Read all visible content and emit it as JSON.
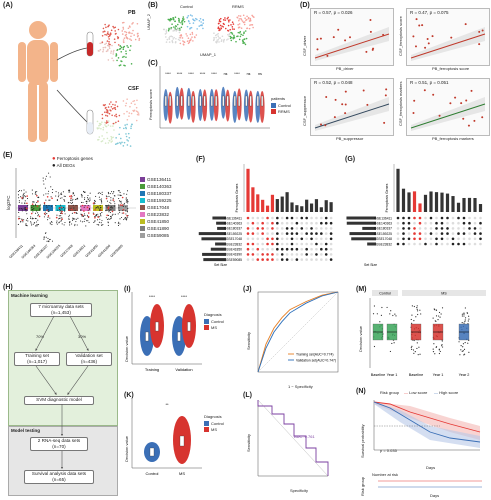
{
  "panels": {
    "A": {
      "letter": "(A)",
      "tube_labels": [
        "PB",
        "CSF"
      ]
    },
    "B": {
      "letter": "(B)",
      "titles": [
        "Control",
        "RRMS"
      ],
      "xlabel": "UMAP_1",
      "ylabel": "UMAP_2"
    },
    "C": {
      "letter": "(C)",
      "ylabel": "Ferroptosis score",
      "legend_title": "patients",
      "legend_items": [
        "Control",
        "RRMS"
      ],
      "sig": [
        "****",
        "****",
        "****",
        "****",
        "****",
        "ns",
        "****",
        "ns",
        "ns"
      ]
    },
    "D": {
      "letter": "(D)",
      "plots": [
        {
          "stat": "R = 0.57, p = 0.026",
          "xlabel": "PB_driver",
          "ylabel": "CSF_driver",
          "line": "#c0392b"
        },
        {
          "stat": "R = 0.47, p = 0.075",
          "xlabel": "PB_ferroptosis score",
          "ylabel": "CSF_ferroptosis score",
          "line": "#c0392b"
        },
        {
          "stat": "R = 0.52, p = 0.048",
          "xlabel": "PB_suppressor",
          "ylabel": "CSF_suppressor",
          "line": "#34495e"
        },
        {
          "stat": "R = 0.51, p = 0.051",
          "xlabel": "PB_ferroptosis markers",
          "ylabel": "CSF_ferroptosis markers",
          "line": "#2e7d32"
        }
      ]
    },
    "E": {
      "letter": "(E)",
      "ylabel": "log2FC",
      "legend": [
        "Ferroptosis genes",
        "All DEGs"
      ],
      "datasets": [
        "GSE136411",
        "GSE140363",
        "GSE180337",
        "GSE159225",
        "GSE17048",
        "GSE23832",
        "GSE41850",
        "GSE41890",
        "GSE59085"
      ],
      "colors": [
        "#7b3f98",
        "#4a9a3a",
        "#1f77b4",
        "#17becf",
        "#8c564b",
        "#e377c2",
        "#bcbd22",
        "#7f7f7f",
        "#9e9e9e"
      ]
    },
    "F": {
      "letter": "(F)",
      "ylabel": "Ferroptosis Genes",
      "setsize": "Set Size",
      "sets": [
        "GSE136411",
        "GSE140363",
        "GSE180337",
        "GSE159225",
        "GSE17048",
        "GSE23832",
        "GSE41850",
        "GSE41890",
        "GSE59085"
      ]
    },
    "G": {
      "letter": "(G)",
      "ylabel": "Ferroptosis Genes",
      "setsize": "Set Size",
      "sets": [
        "GSE136411",
        "GSE140363",
        "GSE180337",
        "GSE159225",
        "GSE17048",
        "GSE23832"
      ]
    },
    "H": {
      "letter": "(H)",
      "ml_title": "Machine learning",
      "mt_title": "Model testing",
      "box1": "7 microarray data sets\n(n=1,453)",
      "pct_left": "70%",
      "pct_right": "30%",
      "train": "Training set\n(n=1,017)",
      "valid": "Validation set\n(n=436)",
      "svm": "SVM diagnostic model",
      "rna": "2 RNA-seq data sets\n(n=70)",
      "surv": "Survival analysis data sets\n(n=65)"
    },
    "I": {
      "letter": "(I)",
      "ylabel": "Decision value",
      "xcats": [
        "Training",
        "Validation"
      ],
      "legend_title": "Diagnosis",
      "legend_items": [
        "Control",
        "MS"
      ],
      "sig": [
        "****",
        "****"
      ]
    },
    "J": {
      "letter": "(J)",
      "xlabel": "1 − Specificity",
      "ylabel": "Sensitivity",
      "legend": [
        "Training set(AUC=0.774)",
        "Validation set(AUC=0.747)"
      ]
    },
    "K": {
      "letter": "(K)",
      "ylabel": "Decision value",
      "xcats": [
        "Control",
        "MS"
      ],
      "legend_title": "Diagnosis",
      "legend_items": [
        "Control",
        "MS"
      ],
      "sig": "**"
    },
    "L": {
      "letter": "(L)",
      "xlabel": "Specificity",
      "ylabel": "Sensitivity",
      "auc": "AUC: 0.761"
    },
    "M": {
      "letter": "(M)",
      "ylabel": "Decision value",
      "xcats": [
        "Baseline",
        "Year 1",
        "Baseline",
        "Year 1",
        "Year 2"
      ],
      "groups": [
        "Control",
        "MS"
      ]
    },
    "N": {
      "letter": "(N)",
      "risk_title": "Risk group",
      "risk_items": [
        "Low score",
        "High score"
      ],
      "ylabel": "Survival probability",
      "xlabel": "Days",
      "pval": "p = 0.035",
      "table_title": "Number at risk",
      "table_ylabel": "Risk group",
      "table_xlabel": "Days"
    }
  },
  "chart_data": [
    {
      "type": "bar",
      "title": "",
      "categories": [
        "Training",
        "Validation"
      ],
      "series": [
        {
          "name": "Control",
          "values": [
            -0.6,
            -0.4
          ]
        },
        {
          "name": "MS",
          "values": [
            0.6,
            0.5
          ]
        }
      ]
    },
    {
      "type": "line",
      "title": "",
      "xlabel": "1 − Specificity",
      "ylabel": "Sensitivity",
      "series": [
        {
          "name": "Training set(AUC=0.774)",
          "x": [
            0,
            0.1,
            0.2,
            0.3,
            0.4,
            0.6,
            0.8,
            1
          ],
          "y": [
            0,
            0.35,
            0.55,
            0.68,
            0.78,
            0.88,
            0.96,
            1
          ]
        },
        {
          "name": "Validation set(AUC=0.747)",
          "x": [
            0,
            0.1,
            0.2,
            0.3,
            0.4,
            0.6,
            0.8,
            1
          ],
          "y": [
            0,
            0.3,
            0.5,
            0.63,
            0.74,
            0.86,
            0.95,
            1
          ]
        }
      ]
    }
  ],
  "colors": {
    "control": "#3b6fb6",
    "ms": "#d7342f",
    "green": "#3aa55a",
    "gray_dot": "#333"
  }
}
